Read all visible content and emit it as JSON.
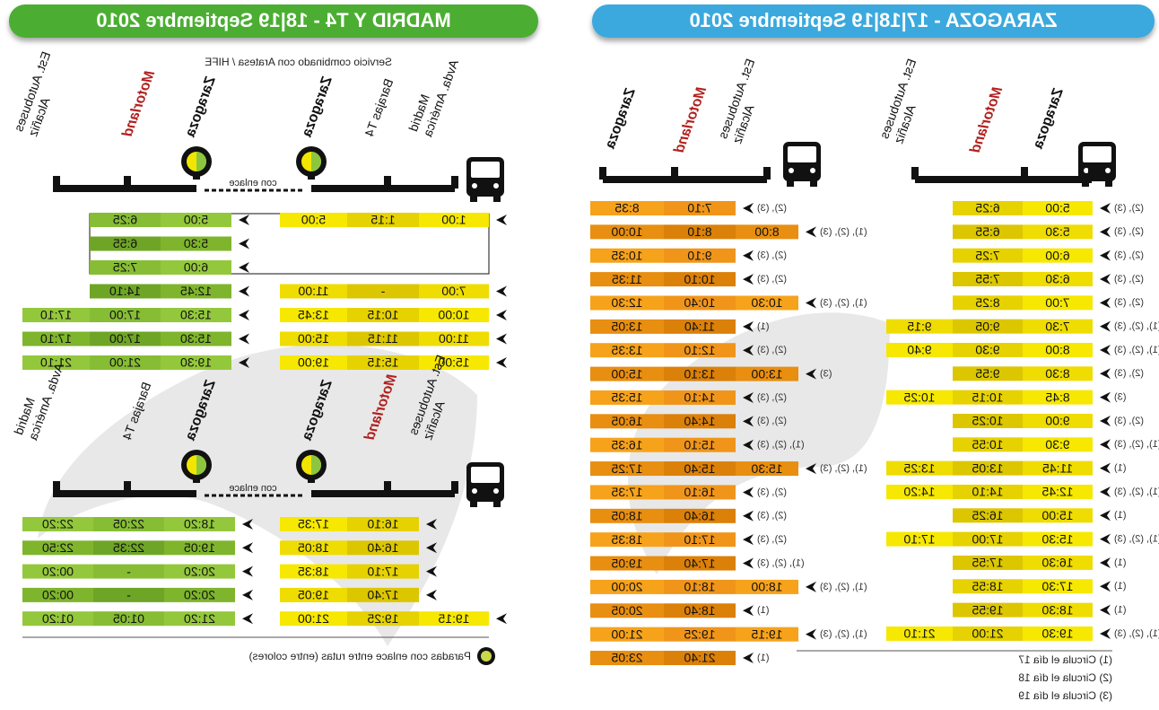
{
  "zaragoza": {
    "title": "ZARAGOZA - 17|18|19 Septiembre 2010",
    "outbound": {
      "stops": [
        [
          "Zaragoza"
        ],
        [
          "Motorland"
        ],
        [
          "Est. Autobuses",
          "Alcañiz"
        ]
      ],
      "rows": [
        {
          "notes": "(2), (3)",
          "times": [
            "5:00",
            "6:25",
            null
          ]
        },
        {
          "notes": "(2), (3)",
          "times": [
            "5:30",
            "6:55",
            null
          ]
        },
        {
          "notes": "(2), (3)",
          "times": [
            "6:00",
            "7:25",
            null
          ]
        },
        {
          "notes": "(2), (3)",
          "times": [
            "6:30",
            "7:55",
            null
          ]
        },
        {
          "notes": "(2), (3)",
          "times": [
            "7:00",
            "8:25",
            null
          ]
        },
        {
          "notes": "(1), (2), (3)",
          "times": [
            "7:30",
            "9:05",
            "9:15"
          ]
        },
        {
          "notes": "(1), (2), (3)",
          "times": [
            "8:00",
            "9:30",
            "9:40"
          ]
        },
        {
          "notes": "(2), (3)",
          "times": [
            "8:30",
            "9:55",
            null
          ]
        },
        {
          "notes": "(3)",
          "times": [
            "8:45",
            "10:15",
            "10:25"
          ]
        },
        {
          "notes": "(2), (3)",
          "times": [
            "9:00",
            "10:25",
            null
          ]
        },
        {
          "notes": "(1), (2), (3)",
          "times": [
            "9:30",
            "10:55",
            null
          ]
        },
        {
          "notes": "(1)",
          "times": [
            "11:45",
            "13:05",
            "13:25"
          ]
        },
        {
          "notes": "(1), (2), (3)",
          "times": [
            "12:45",
            "14:10",
            "14:20"
          ]
        },
        {
          "notes": "(1)",
          "times": [
            "15:00",
            "16:25",
            null
          ]
        },
        {
          "notes": "(1), (2), (3)",
          "times": [
            "15:30",
            "17:00",
            "17:10"
          ]
        },
        {
          "notes": "(1)",
          "times": [
            "16:30",
            "17:55",
            null
          ]
        },
        {
          "notes": "(1)",
          "times": [
            "17:30",
            "18:55",
            null
          ]
        },
        {
          "notes": "(1)",
          "times": [
            "18:30",
            "19:55",
            null
          ]
        },
        {
          "notes": "(1), (2), (3)",
          "times": [
            "19:30",
            "21:00",
            "21:10"
          ]
        }
      ]
    },
    "return": {
      "stops": [
        [
          "Est. Autobuses",
          "Alcañiz"
        ],
        [
          "Motorland"
        ],
        [
          "Zaragoza"
        ]
      ],
      "rows": [
        {
          "notes": "(2), (3)",
          "times": [
            null,
            "7:10",
            "8:35"
          ]
        },
        {
          "notes": "(1), (2), (3)",
          "times": [
            "8:00",
            "8:10",
            "10:00"
          ]
        },
        {
          "notes": "(2), (3)",
          "times": [
            null,
            "9:10",
            "10:35"
          ]
        },
        {
          "notes": "(2), (3)",
          "times": [
            null,
            "10:10",
            "11:35"
          ]
        },
        {
          "notes": "(1), (2), (3)",
          "times": [
            "10:30",
            "10:40",
            "12:30"
          ]
        },
        {
          "notes": "(1)",
          "times": [
            null,
            "11:40",
            "13:05"
          ]
        },
        {
          "notes": "(2), (3)",
          "times": [
            null,
            "12:10",
            "13:35"
          ]
        },
        {
          "notes": "(3)",
          "times": [
            "13:00",
            "13:10",
            "15:00"
          ]
        },
        {
          "notes": "(2), (3)",
          "times": [
            null,
            "14:10",
            "15:35"
          ]
        },
        {
          "notes": "(2), (3)",
          "times": [
            null,
            "14:40",
            "16:05"
          ]
        },
        {
          "notes": "(1), (2), (3)",
          "times": [
            null,
            "15:10",
            "16:35"
          ]
        },
        {
          "notes": "(1), (2), (3)",
          "times": [
            "15:30",
            "15:40",
            "17:25"
          ]
        },
        {
          "notes": "(2), (3)",
          "times": [
            null,
            "16:10",
            "17:35"
          ]
        },
        {
          "notes": "(2), (3)",
          "times": [
            null,
            "16:40",
            "18:05"
          ]
        },
        {
          "notes": "(2), (3)",
          "times": [
            null,
            "17:10",
            "18:35"
          ]
        },
        {
          "notes": "(1), (2), (3)",
          "times": [
            null,
            "17:40",
            "19:05"
          ]
        },
        {
          "notes": "(1), (2), (3)",
          "times": [
            "18:00",
            "18:10",
            "20:00"
          ]
        },
        {
          "notes": "(1)",
          "times": [
            null,
            "18:40",
            "20:05"
          ]
        },
        {
          "notes": "(1), (2), (3)",
          "times": [
            "19:15",
            "19:25",
            "21:00"
          ]
        },
        {
          "notes": "(1)",
          "times": [
            null,
            "21:40",
            "23:05"
          ]
        }
      ]
    },
    "footnotes": [
      "(1) Circula el día 17",
      "(2) Circula el día 18",
      "(3) Circula el día 19"
    ]
  },
  "madrid": {
    "title": "MADRID Y T4 - 18|19 Septiembre 2010",
    "subtitle": "Servicio combinado con Aratesa / HIFE",
    "outbound": {
      "stops": [
        [
          "Madrid",
          "Avda. América"
        ],
        [
          "Barajas T4"
        ],
        [
          "Zaragoza"
        ],
        [
          "Zaragoza"
        ],
        [
          "Motorland"
        ],
        [
          "Est. Autobuses",
          "Alcañiz"
        ]
      ],
      "link_label": "con enlace",
      "rows": [
        {
          "times": [
            "1:00",
            "1:15",
            "5:00",
            "5:00",
            "6:25",
            null
          ]
        },
        {
          "times": [
            null,
            null,
            null,
            "5:30",
            "6:55",
            null
          ]
        },
        {
          "times": [
            null,
            null,
            null,
            "6:00",
            "7:25",
            null
          ]
        },
        {
          "times": [
            "7:00",
            "-",
            "11:00",
            "12:45",
            "14:10",
            null
          ]
        },
        {
          "times": [
            "10:00",
            "10:15",
            "13:45",
            "15:30",
            "17:00",
            "17:10"
          ]
        },
        {
          "times": [
            "11:00",
            "11:15",
            "15:00",
            "15:30",
            "17:00",
            "17:10"
          ]
        },
        {
          "times": [
            "15:00",
            "15:15",
            "19:00",
            "19:30",
            "21:00",
            "21:10"
          ]
        }
      ]
    },
    "return": {
      "stops": [
        [
          "Est. Autobuses",
          "Alcañiz"
        ],
        [
          "Motorland"
        ],
        [
          "Zaragoza"
        ],
        [
          "Zaragoza"
        ],
        [
          "Barajas T4"
        ],
        [
          "Madrid",
          "Avda. América"
        ]
      ],
      "link_label": "con enlace",
      "rows": [
        {
          "times": [
            null,
            "16:10",
            "17:35",
            "18:20",
            "22:05",
            "22:20"
          ]
        },
        {
          "times": [
            null,
            "16:40",
            "18:05",
            "19:05",
            "22:35",
            "22:50"
          ]
        },
        {
          "times": [
            null,
            "17:10",
            "18:35",
            "20:20",
            "-",
            "00:20"
          ]
        },
        {
          "times": [
            null,
            "17:40",
            "19:05",
            "20:20",
            "-",
            "00:20"
          ]
        },
        {
          "times": [
            "19:15",
            "19:25",
            "21:00",
            "21:20",
            "01:05",
            "01:20"
          ]
        }
      ]
    },
    "legend": "Paradas con enlace entre rutas (entre colores)"
  }
}
